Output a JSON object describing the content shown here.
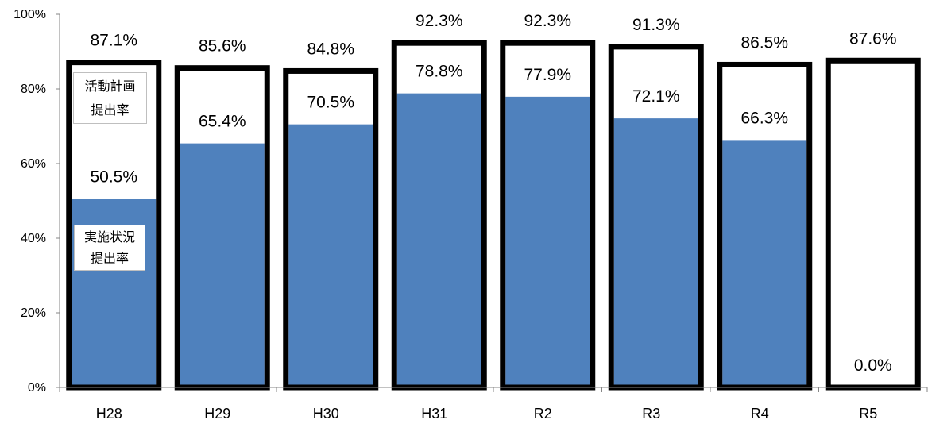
{
  "chart_data": {
    "type": "bar",
    "categories": [
      "H28",
      "H29",
      "H30",
      "H31",
      "R2",
      "R3",
      "R4",
      "R5"
    ],
    "series": [
      {
        "name": "活動計画提出率",
        "values": [
          87.1,
          85.6,
          84.8,
          92.3,
          92.3,
          91.3,
          86.5,
          87.6
        ],
        "labels": [
          "87.1%",
          "85.6%",
          "84.8%",
          "92.3%",
          "92.3%",
          "91.3%",
          "86.5%",
          "87.6%"
        ],
        "fill": "#ffffff",
        "stroke": "#000000"
      },
      {
        "name": "実施状況提出率",
        "values": [
          50.5,
          65.4,
          70.5,
          78.8,
          77.9,
          72.1,
          66.3,
          0.0
        ],
        "labels": [
          "50.5%",
          "65.4%",
          "70.5%",
          "78.8%",
          "77.9%",
          "72.1%",
          "66.3%",
          "0.0%"
        ],
        "fill": "#4f81bd"
      }
    ],
    "ylim": [
      0,
      100
    ],
    "yticks": [
      0,
      20,
      40,
      60,
      80,
      100
    ],
    "ytick_labels": [
      "0%",
      "20%",
      "40%",
      "60%",
      "80%",
      "100%"
    ],
    "grid": false,
    "legend": "inside-first-bar",
    "axis_color": "#868686"
  }
}
